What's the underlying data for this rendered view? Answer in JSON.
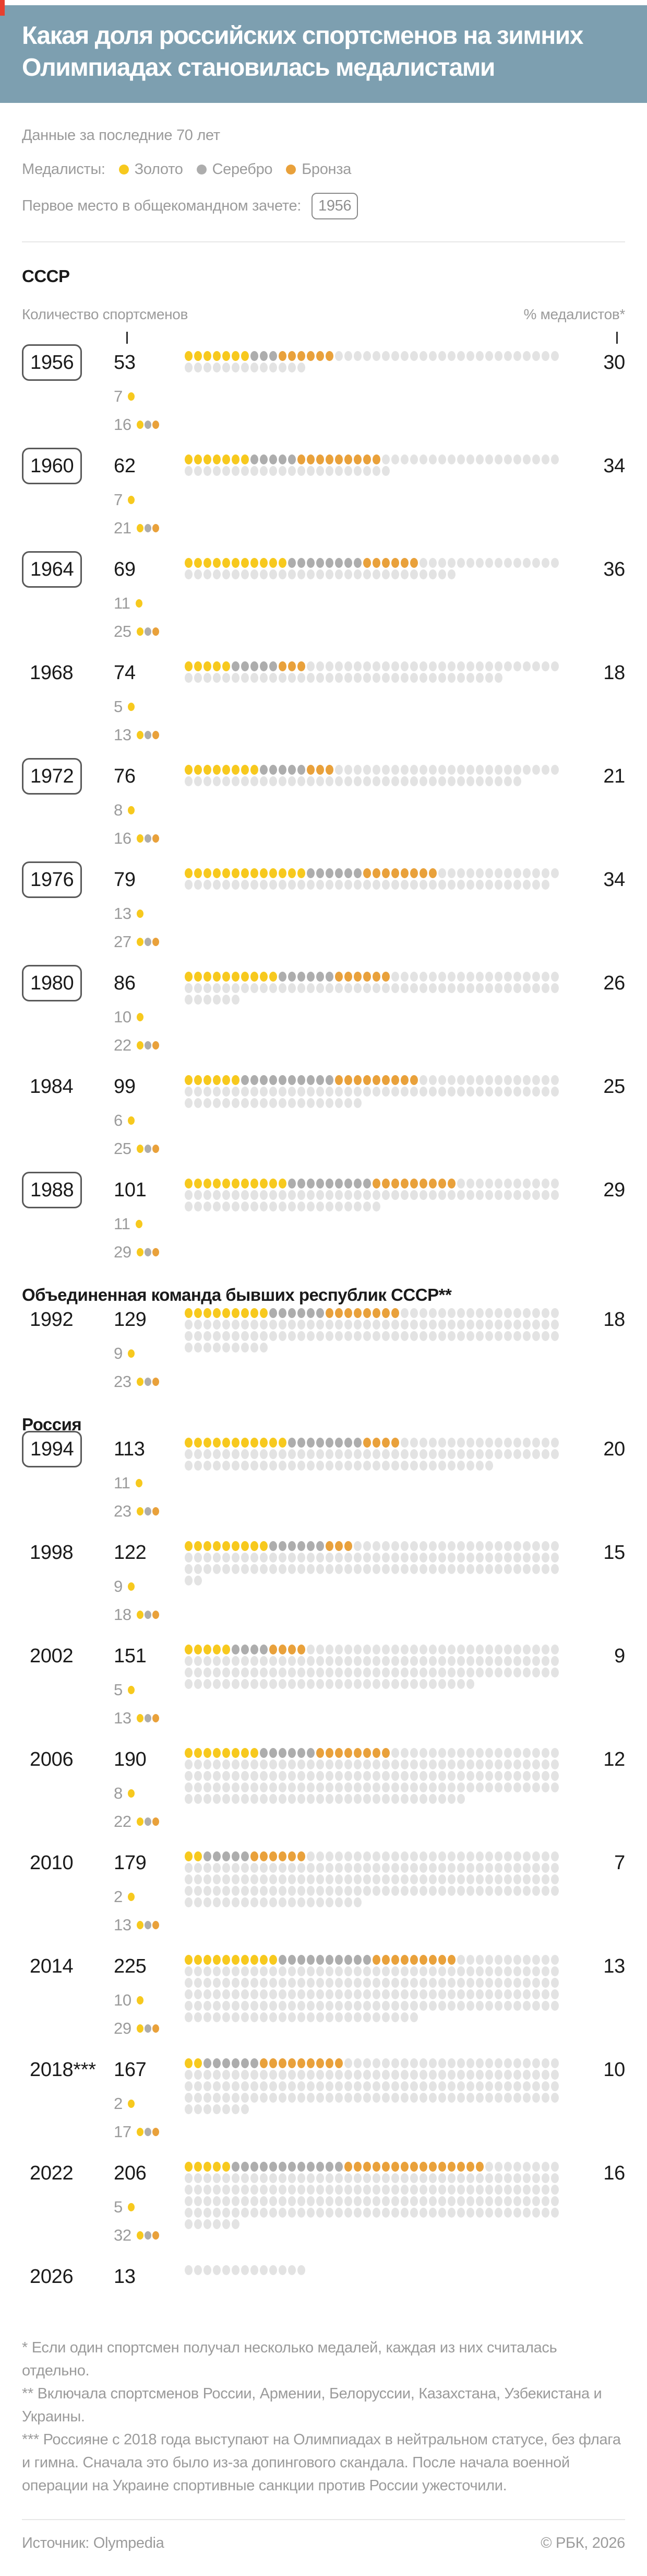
{
  "colors": {
    "gold": "#F7C91E",
    "silver": "#ADADAD",
    "bronze": "#E9A13B",
    "empty": "#E3E3E3",
    "header_bg": "#7D9FB0",
    "accent_red": "#E8402F",
    "text_dark": "#1A1A1A",
    "text_gray": "#9B9B9B"
  },
  "header": {
    "title": "Какая доля российских спортсменов на зимних Олимпиадах становилась медалистами"
  },
  "intro": {
    "subtitle": "Данные за последние 70 лет"
  },
  "chart_data": {
    "type": "pictogram",
    "title": "Какая доля российских спортсменов на зимних Олимпиадах становилась медалистами",
    "dot_unit": "1 спортсмен",
    "dots_per_row": 40,
    "legend": {
      "label": "Медалисты:",
      "items": [
        {
          "label": "Золото",
          "key": "gold"
        },
        {
          "label": "Серебро",
          "key": "silver"
        },
        {
          "label": "Бронза",
          "key": "bronze"
        }
      ]
    },
    "first_place": {
      "label": "Первое место в общекомандном зачете:",
      "year": "1956"
    },
    "scale": {
      "left": "Количество спортсменов",
      "right": "% медалистов*"
    },
    "sections": [
      {
        "title": "СССР",
        "show_scale": true,
        "rows": [
          {
            "year": "1956",
            "first_place": true,
            "athletes": 53,
            "gold": 7,
            "silver": 3,
            "bronze": 6,
            "medalists": 16,
            "pct": 30
          },
          {
            "year": "1960",
            "first_place": true,
            "athletes": 62,
            "gold": 7,
            "silver": 5,
            "bronze": 9,
            "medalists": 21,
            "pct": 34
          },
          {
            "year": "1964",
            "first_place": true,
            "athletes": 69,
            "gold": 11,
            "silver": 8,
            "bronze": 6,
            "medalists": 25,
            "pct": 36
          },
          {
            "year": "1968",
            "first_place": false,
            "athletes": 74,
            "gold": 5,
            "silver": 5,
            "bronze": 3,
            "medalists": 13,
            "pct": 18
          },
          {
            "year": "1972",
            "first_place": true,
            "athletes": 76,
            "gold": 8,
            "silver": 5,
            "bronze": 3,
            "medalists": 16,
            "pct": 21
          },
          {
            "year": "1976",
            "first_place": true,
            "athletes": 79,
            "gold": 13,
            "silver": 6,
            "bronze": 8,
            "medalists": 27,
            "pct": 34
          },
          {
            "year": "1980",
            "first_place": true,
            "athletes": 86,
            "gold": 10,
            "silver": 6,
            "bronze": 6,
            "medalists": 22,
            "pct": 26
          },
          {
            "year": "1984",
            "first_place": false,
            "athletes": 99,
            "gold": 6,
            "silver": 10,
            "bronze": 9,
            "medalists": 25,
            "pct": 25
          },
          {
            "year": "1988",
            "first_place": true,
            "athletes": 101,
            "gold": 11,
            "silver": 9,
            "bronze": 9,
            "medalists": 29,
            "pct": 29
          }
        ]
      },
      {
        "title": "Объединенная команда бывших республик СССР**",
        "show_scale": false,
        "rows": [
          {
            "year": "1992",
            "first_place": false,
            "athletes": 129,
            "gold": 9,
            "silver": 6,
            "bronze": 8,
            "medalists": 23,
            "pct": 18
          }
        ]
      },
      {
        "title": "Россия",
        "show_scale": false,
        "rows": [
          {
            "year": "1994",
            "first_place": true,
            "athletes": 113,
            "gold": 11,
            "silver": 8,
            "bronze": 4,
            "medalists": 23,
            "pct": 20
          },
          {
            "year": "1998",
            "first_place": false,
            "athletes": 122,
            "gold": 9,
            "silver": 6,
            "bronze": 3,
            "medalists": 18,
            "pct": 15
          },
          {
            "year": "2002",
            "first_place": false,
            "athletes": 151,
            "gold": 5,
            "silver": 4,
            "bronze": 4,
            "medalists": 13,
            "pct": 9
          },
          {
            "year": "2006",
            "first_place": false,
            "athletes": 190,
            "gold": 8,
            "silver": 6,
            "bronze": 8,
            "medalists": 22,
            "pct": 12
          },
          {
            "year": "2010",
            "first_place": false,
            "athletes": 179,
            "gold": 2,
            "silver": 5,
            "bronze": 6,
            "medalists": 13,
            "pct": 7
          },
          {
            "year": "2014",
            "first_place": false,
            "athletes": 225,
            "gold": 10,
            "silver": 10,
            "bronze": 9,
            "medalists": 29,
            "pct": 13
          },
          {
            "year": "2018***",
            "first_place": false,
            "athletes": 167,
            "gold": 2,
            "silver": 6,
            "bronze": 9,
            "medalists": 17,
            "pct": 10
          },
          {
            "year": "2022",
            "first_place": false,
            "athletes": 206,
            "gold": 5,
            "silver": 12,
            "bronze": 15,
            "medalists": 32,
            "pct": 16
          },
          {
            "year": "2026",
            "first_place": false,
            "athletes": 13,
            "gold": 0,
            "silver": 0,
            "bronze": 0,
            "medalists": null,
            "pct": null
          }
        ]
      }
    ]
  },
  "footnotes": [
    "* Если один спортсмен получал несколько медалей, каждая из них считалась отдельно.",
    "** Включала спортсменов России, Армении, Белоруссии, Казахстана, Узбекистана и Украины.",
    "*** Россияне с 2018 года выступают на Олимпиадах в нейтральном статусе, без флага и гимна. Сначала это было из-за допингового скандала. После начала военной операции на Украине спортивные санкции против России ужесточили."
  ],
  "footer": {
    "source": "Источник: Olympedia",
    "copyright": "© РБК, 2026"
  }
}
